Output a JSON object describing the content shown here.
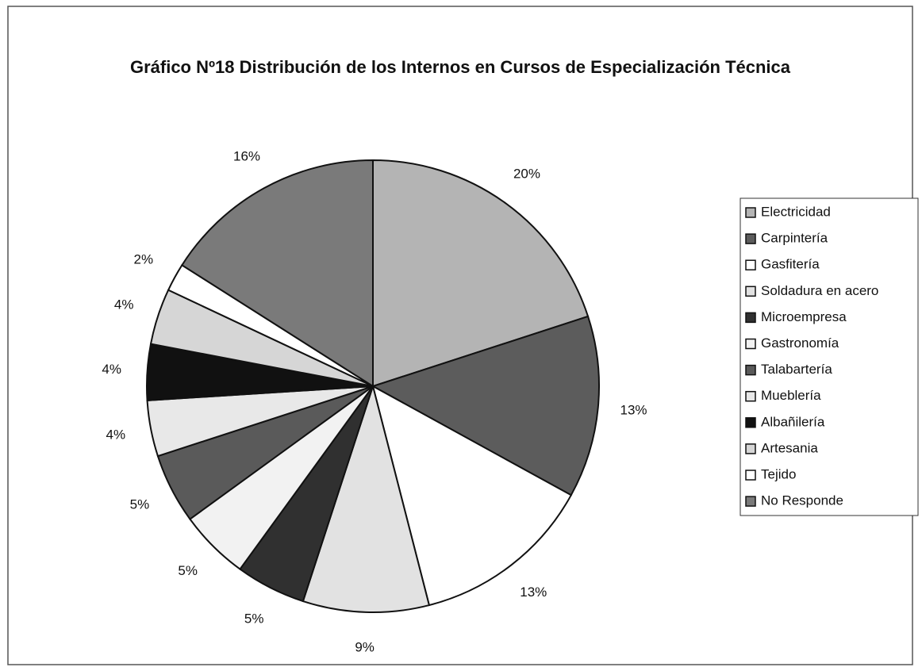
{
  "chart_data": {
    "type": "pie",
    "title": "Gráfico Nº18 Distribución de los Internos en Cursos de Especialización Técnica",
    "categories": [
      "Electricidad",
      "Carpintería",
      "Gasfitería",
      "Soldadura en acero",
      "Microempresa",
      "Gastronomía",
      "Talabartería",
      "Mueblería",
      "Albañilería",
      "Artesania",
      "Tejido",
      "No Responde"
    ],
    "values": [
      20,
      13,
      13,
      9,
      5,
      5,
      5,
      4,
      4,
      4,
      2,
      16
    ],
    "value_labels": [
      "20%",
      "13%",
      "13%",
      "9%",
      "5%",
      "5%",
      "5%",
      "4%",
      "4%",
      "4%",
      "2%",
      "16%"
    ],
    "colors": [
      "#b4b4b4",
      "#5c5c5c",
      "#ffffff",
      "#e2e2e2",
      "#303030",
      "#f2f2f2",
      "#5a5a5a",
      "#e8e8e8",
      "#111111",
      "#d6d6d6",
      "#ffffff",
      "#7a7a7a"
    ],
    "legend": "right"
  }
}
